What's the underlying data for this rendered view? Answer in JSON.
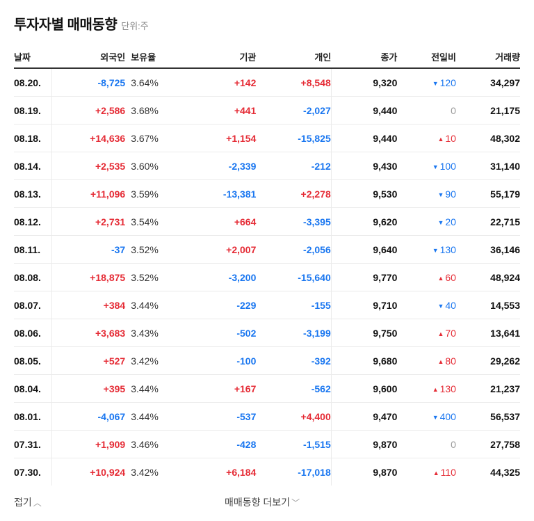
{
  "header": {
    "title": "투자자별 매매동향",
    "unit": "단위:주"
  },
  "columns": {
    "date": "날짜",
    "foreign": "외국인",
    "holding": "보유율",
    "institution": "기관",
    "individual": "개인",
    "close": "종가",
    "change": "전일비",
    "volume": "거래량"
  },
  "colors": {
    "up": "#e52b35",
    "down": "#1976f0",
    "flat": "#999999"
  },
  "rows": [
    {
      "date": "08.20.",
      "foreign": "-8,725",
      "holding": "3.64%",
      "institution": "+142",
      "individual": "+8,548",
      "close": "9,320",
      "change": "120",
      "change_dir": "down",
      "volume": "34,297"
    },
    {
      "date": "08.19.",
      "foreign": "+2,586",
      "holding": "3.68%",
      "institution": "+441",
      "individual": "-2,027",
      "close": "9,440",
      "change": "0",
      "change_dir": "flat",
      "volume": "21,175"
    },
    {
      "date": "08.18.",
      "foreign": "+14,636",
      "holding": "3.67%",
      "institution": "+1,154",
      "individual": "-15,825",
      "close": "9,440",
      "change": "10",
      "change_dir": "up",
      "volume": "48,302"
    },
    {
      "date": "08.14.",
      "foreign": "+2,535",
      "holding": "3.60%",
      "institution": "-2,339",
      "individual": "-212",
      "close": "9,430",
      "change": "100",
      "change_dir": "down",
      "volume": "31,140"
    },
    {
      "date": "08.13.",
      "foreign": "+11,096",
      "holding": "3.59%",
      "institution": "-13,381",
      "individual": "+2,278",
      "close": "9,530",
      "change": "90",
      "change_dir": "down",
      "volume": "55,179"
    },
    {
      "date": "08.12.",
      "foreign": "+2,731",
      "holding": "3.54%",
      "institution": "+664",
      "individual": "-3,395",
      "close": "9,620",
      "change": "20",
      "change_dir": "down",
      "volume": "22,715"
    },
    {
      "date": "08.11.",
      "foreign": "-37",
      "holding": "3.52%",
      "institution": "+2,007",
      "individual": "-2,056",
      "close": "9,640",
      "change": "130",
      "change_dir": "down",
      "volume": "36,146"
    },
    {
      "date": "08.08.",
      "foreign": "+18,875",
      "holding": "3.52%",
      "institution": "-3,200",
      "individual": "-15,640",
      "close": "9,770",
      "change": "60",
      "change_dir": "up",
      "volume": "48,924"
    },
    {
      "date": "08.07.",
      "foreign": "+384",
      "holding": "3.44%",
      "institution": "-229",
      "individual": "-155",
      "close": "9,710",
      "change": "40",
      "change_dir": "down",
      "volume": "14,553"
    },
    {
      "date": "08.06.",
      "foreign": "+3,683",
      "holding": "3.43%",
      "institution": "-502",
      "individual": "-3,199",
      "close": "9,750",
      "change": "70",
      "change_dir": "up",
      "volume": "13,641"
    },
    {
      "date": "08.05.",
      "foreign": "+527",
      "holding": "3.42%",
      "institution": "-100",
      "individual": "-392",
      "close": "9,680",
      "change": "80",
      "change_dir": "up",
      "volume": "29,262"
    },
    {
      "date": "08.04.",
      "foreign": "+395",
      "holding": "3.44%",
      "institution": "+167",
      "individual": "-562",
      "close": "9,600",
      "change": "130",
      "change_dir": "up",
      "volume": "21,237"
    },
    {
      "date": "08.01.",
      "foreign": "-4,067",
      "holding": "3.44%",
      "institution": "-537",
      "individual": "+4,400",
      "close": "9,470",
      "change": "400",
      "change_dir": "down",
      "volume": "56,537"
    },
    {
      "date": "07.31.",
      "foreign": "+1,909",
      "holding": "3.46%",
      "institution": "-428",
      "individual": "-1,515",
      "close": "9,870",
      "change": "0",
      "change_dir": "flat",
      "volume": "27,758"
    },
    {
      "date": "07.30.",
      "foreign": "+10,924",
      "holding": "3.42%",
      "institution": "+6,184",
      "individual": "-17,018",
      "close": "9,870",
      "change": "110",
      "change_dir": "up",
      "volume": "44,325"
    }
  ],
  "icons": {
    "up": "▲",
    "down": "▼",
    "chevron_up": "︿",
    "chevron_down": "﹀"
  },
  "footer": {
    "fold_label": "접기",
    "more_label": "매매동향 더보기"
  }
}
